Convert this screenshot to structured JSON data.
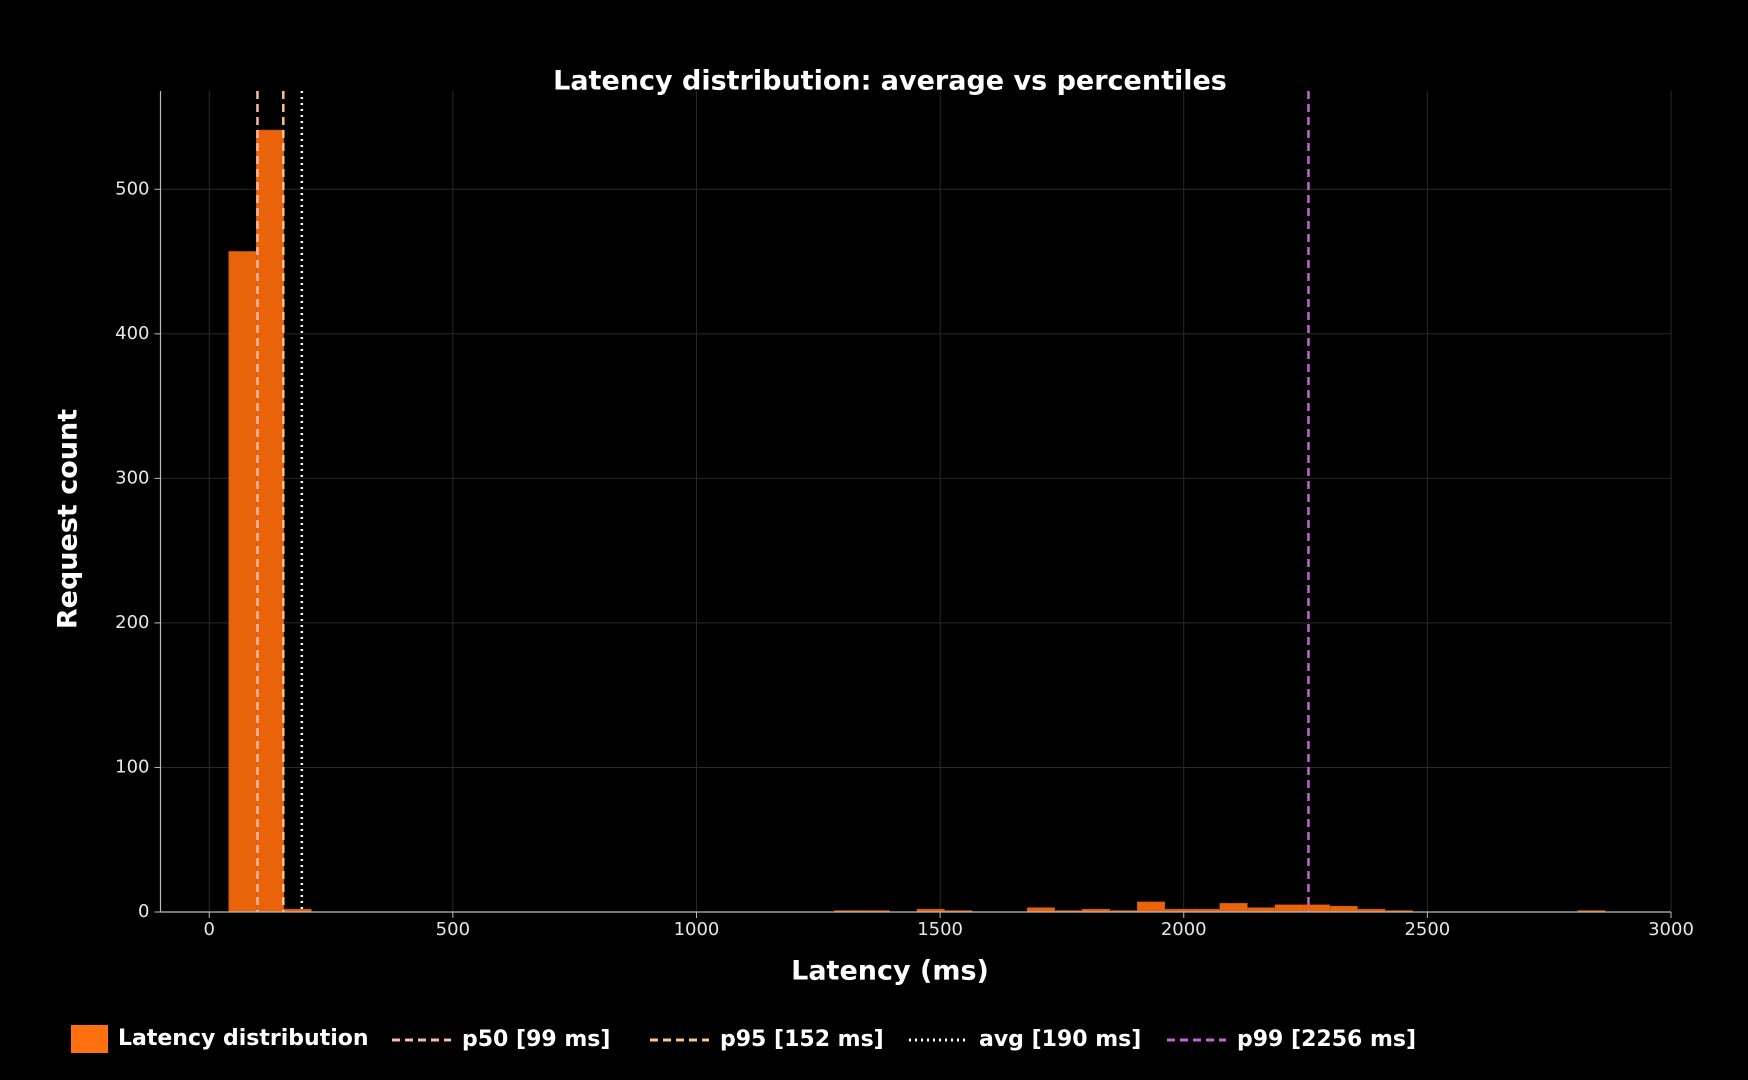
{
  "chart_data": {
    "type": "histogram",
    "title": "Latency distribution: average vs percentiles",
    "x_label": "Latency (ms)",
    "y_label": "Request count",
    "series_name": "Latency distribution",
    "color": "#e8630a",
    "bins": [
      40,
      96.5,
      153,
      209.5,
      266,
      322.5,
      379,
      435.5,
      492,
      548.5,
      605,
      661.5,
      718,
      774.5,
      831,
      887.5,
      944,
      1000.5,
      1057,
      1113.5,
      1170,
      1226.5,
      1283,
      1339.5,
      1396,
      1452.5,
      1509,
      1565.5,
      1622,
      1678.5,
      1735,
      1791.5,
      1848,
      1904.5,
      1961,
      2017.5,
      2074,
      2130.5,
      2187,
      2243.5,
      2300,
      2356.5,
      2413,
      2469.5,
      2526,
      2582.5,
      2639,
      2695.5,
      2752,
      2808.5,
      2865
    ],
    "values": [
      457,
      541,
      2,
      0,
      0,
      0,
      0,
      0,
      0,
      0,
      0,
      0,
      0,
      0,
      0,
      0,
      0,
      0,
      0,
      0,
      0,
      0,
      1,
      1,
      0,
      2,
      1,
      0,
      0,
      3,
      1,
      2,
      1,
      7,
      2,
      2,
      6,
      3,
      5,
      5,
      4,
      2,
      1,
      0,
      0,
      0,
      0,
      0,
      0,
      1
    ],
    "lines": [
      {
        "name": "p50 [99 ms]",
        "value": 99,
        "color": "#ffb8a8",
        "style": "dashed"
      },
      {
        "name": "p95 [152 ms]",
        "value": 152,
        "color": "#ffc48a",
        "style": "dashed"
      },
      {
        "name": "avg [190 ms]",
        "value": 190,
        "color": "#ffffff",
        "style": "dotted"
      },
      {
        "name": "p99 [2256 ms]",
        "value": 2256,
        "color": "#c862d8",
        "style": "dashed"
      }
    ],
    "xlim": [
      -100,
      3000
    ],
    "xticks": [
      0,
      500,
      1000,
      1500,
      2000,
      2500,
      3000
    ],
    "ylim": [
      0,
      568
    ],
    "yticks": [
      0,
      100,
      200,
      300,
      400,
      500
    ],
    "grid": true,
    "legend": "bottom"
  }
}
